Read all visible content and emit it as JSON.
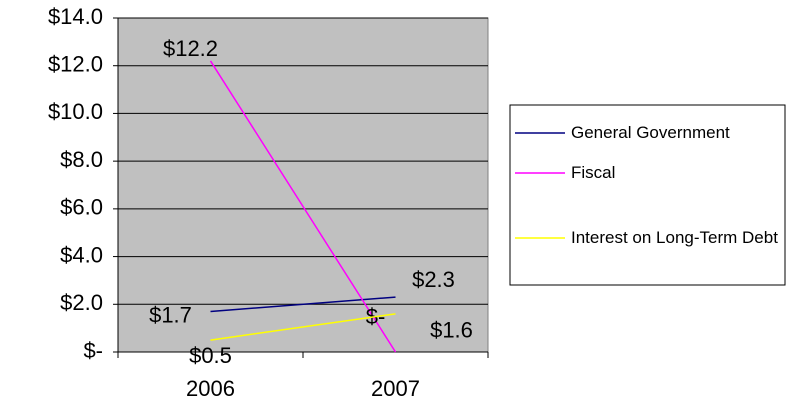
{
  "chart_data": {
    "type": "line",
    "categories": [
      "2006",
      "2007"
    ],
    "series": [
      {
        "name": "General Government",
        "color": "#000080",
        "values": [
          1.7,
          2.3
        ],
        "value_labels": [
          "$1.7",
          "$2.3"
        ]
      },
      {
        "name": "Fiscal",
        "color": "#ff00ff",
        "values": [
          12.2,
          0
        ],
        "value_labels": [
          "$12.2",
          "$-"
        ]
      },
      {
        "name": "Interest on Long-Term Debt",
        "color": "#ffff00",
        "values": [
          0.5,
          1.6
        ],
        "value_labels": [
          "$0.5",
          "$1.6"
        ]
      }
    ],
    "ylim": [
      0,
      14
    ],
    "yticks": [
      {
        "value": 0,
        "label": "$-"
      },
      {
        "value": 2,
        "label": "$2.0"
      },
      {
        "value": 4,
        "label": "$4.0"
      },
      {
        "value": 6,
        "label": "$6.0"
      },
      {
        "value": 8,
        "label": "$8.0"
      },
      {
        "value": 10,
        "label": "$10.0"
      },
      {
        "value": 12,
        "label": "$12.0"
      },
      {
        "value": 14,
        "label": "$14.0"
      }
    ],
    "grid": true,
    "legend": "right"
  }
}
